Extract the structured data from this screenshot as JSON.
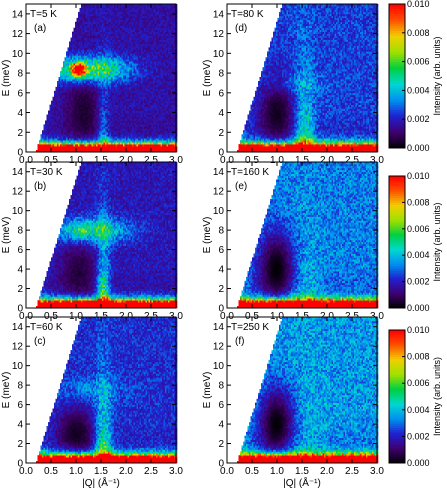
{
  "chart_data": [
    {
      "type": "heatmap",
      "panel": "(a)",
      "temperature": "T=5 K",
      "xlabel": "|Q| (Å⁻¹)",
      "ylabel": "E (meV)",
      "xlim": [
        0,
        3
      ],
      "ylim": [
        0,
        15
      ],
      "xticks": [
        "0.0",
        "0.5",
        "1.0",
        "1.5",
        "2.0",
        "2.5",
        "3.0"
      ],
      "yticks": [
        "0",
        "2",
        "4",
        "6",
        "8",
        "10",
        "12",
        "14"
      ],
      "features": {
        "bg": 0.0017,
        "gap_void": [
          1.15,
          4.0,
          0.36,
          4.8,
          0.0005
        ],
        "band_e": 8.4,
        "band": 0.0045,
        "hotspot_q": 1.05,
        "hotspot": 0.0095,
        "column_q": 1.55,
        "column": 0.0022,
        "column_width": 0.12
      }
    },
    {
      "type": "heatmap",
      "panel": "(d)",
      "temperature": "T=80 K",
      "xlabel": "|Q| (Å⁻¹)",
      "ylabel": "E (meV)",
      "xlim": [
        0,
        3
      ],
      "ylim": [
        0,
        15
      ],
      "xticks": [
        "0.0",
        "0.5",
        "1.0",
        "1.5",
        "2.0",
        "2.5",
        "3.0"
      ],
      "yticks": [
        "0",
        "2",
        "4",
        "6",
        "8",
        "10",
        "12",
        "14"
      ],
      "features": {
        "bg": 0.0025,
        "gap_void": [
          1.0,
          4.0,
          0.4,
          4.0,
          0.0003
        ],
        "band_e": 7.0,
        "band": 0.0006,
        "hotspot_q": 1.2,
        "hotspot": 0.0004,
        "column_q": 1.55,
        "column": 0.0036,
        "column_width": 0.2
      }
    },
    {
      "type": "heatmap",
      "panel": "(b)",
      "temperature": "T=30 K",
      "xlabel": "|Q| (Å⁻¹)",
      "ylabel": "E (meV)",
      "xlim": [
        0,
        3
      ],
      "ylim": [
        0,
        15
      ],
      "xticks": [
        "0.0",
        "0.5",
        "1.0",
        "1.5",
        "2.0",
        "2.5",
        "3.0"
      ],
      "yticks": [
        "0",
        "2",
        "4",
        "6",
        "8",
        "10",
        "12",
        "14"
      ],
      "features": {
        "bg": 0.0019,
        "gap_void": [
          1.05,
          3.5,
          0.4,
          4.0,
          0.0006
        ],
        "band_e": 8.0,
        "band": 0.0032,
        "hotspot_q": 1.1,
        "hotspot": 0.0012,
        "column_q": 1.55,
        "column": 0.0048,
        "column_width": 0.13
      }
    },
    {
      "type": "heatmap",
      "panel": "(e)",
      "temperature": "T=160 K",
      "xlabel": "|Q| (Å⁻¹)",
      "ylabel": "E (meV)",
      "xlim": [
        0,
        3
      ],
      "ylim": [
        0,
        15
      ],
      "xticks": [
        "0.0",
        "0.5",
        "1.0",
        "1.5",
        "2.0",
        "2.5",
        "3.0"
      ],
      "yticks": [
        "0",
        "2",
        "4",
        "6",
        "8",
        "10",
        "12",
        "14"
      ],
      "features": {
        "bg": 0.0032,
        "gap_void": [
          1.0,
          4.0,
          0.4,
          4.0,
          0.0
        ],
        "band_e": 7.0,
        "band": 0.0,
        "hotspot_q": 1.2,
        "hotspot": 0.0,
        "column_q": 1.55,
        "column": 0.0016,
        "column_width": 0.3
      }
    },
    {
      "type": "heatmap",
      "panel": "(c)",
      "temperature": "T=60 K",
      "xlabel": "|Q| (Å⁻¹)",
      "ylabel": "E (meV)",
      "xlim": [
        0,
        3
      ],
      "ylim": [
        0,
        15
      ],
      "xticks": [
        "0.0",
        "0.5",
        "1.0",
        "1.5",
        "2.0",
        "2.5",
        "3.0"
      ],
      "yticks": [
        "0",
        "2",
        "4",
        "6",
        "8",
        "10",
        "12",
        "14"
      ],
      "features": {
        "bg": 0.0023,
        "gap_void": [
          1.0,
          3.0,
          0.4,
          3.0,
          0.0003
        ],
        "band_e": 7.5,
        "band": 0.0008,
        "hotspot_q": 1.2,
        "hotspot": 0.0004,
        "column_q": 1.55,
        "column": 0.0045,
        "column_width": 0.16
      }
    },
    {
      "type": "heatmap",
      "panel": "(f)",
      "temperature": "T=250 K",
      "xlabel": "|Q| (Å⁻¹)",
      "ylabel": "E (meV)",
      "xlim": [
        0,
        3
      ],
      "ylim": [
        0,
        15
      ],
      "xticks": [
        "0.0",
        "0.5",
        "1.0",
        "1.5",
        "2.0",
        "2.5",
        "3.0"
      ],
      "yticks": [
        "0",
        "2",
        "4",
        "6",
        "8",
        "10",
        "12",
        "14"
      ],
      "features": {
        "bg": 0.0035,
        "gap_void": [
          1.0,
          4.0,
          0.4,
          4.0,
          0.0
        ],
        "band_e": 7.0,
        "band": 0.0,
        "hotspot_q": 1.2,
        "hotspot": 0.0,
        "column_q": 1.55,
        "column": 0.0012,
        "column_width": 0.35
      }
    }
  ],
  "colorbar": {
    "label": "Intensity (arb. units)",
    "ticks": [
      "0.000",
      "0.002",
      "0.004",
      "0.006",
      "0.008",
      "0.010"
    ],
    "range": [
      0,
      0.01
    ],
    "colors": [
      "#000000",
      "#400070",
      "#2020d0",
      "#0090f0",
      "#00d8d0",
      "#00d040",
      "#a0e000",
      "#f0d000",
      "#ff5000",
      "#ff0000"
    ]
  }
}
